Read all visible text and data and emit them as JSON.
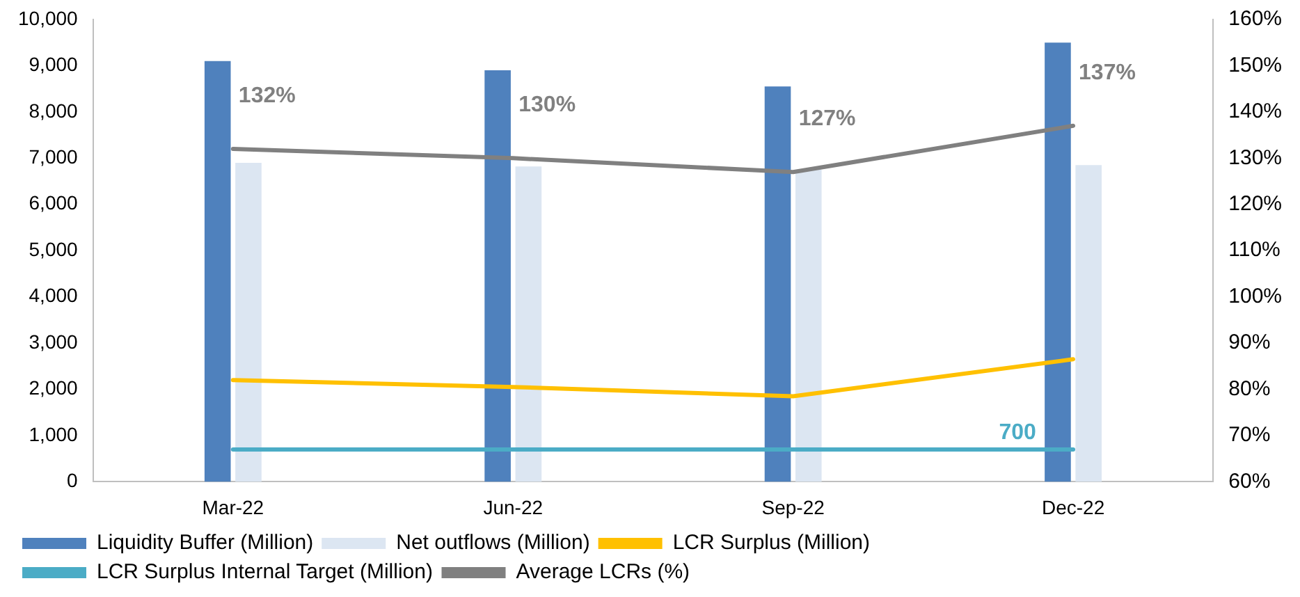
{
  "chart_data": {
    "type": "bar",
    "categories": [
      "Mar-22",
      "Jun-22",
      "Sep-22",
      "Dec-22"
    ],
    "series": [
      {
        "name": "Liquidity Buffer (Million)",
        "color": "#4f81bd",
        "values": [
          9100,
          8900,
          8550,
          9500
        ]
      },
      {
        "name": "Net outflows (Million)",
        "color": "#dce6f2",
        "values": [
          6900,
          6820,
          6750,
          6850
        ]
      },
      {
        "name": "LCR Surplus (Million)",
        "type": "line",
        "color": "#ffc000",
        "values": [
          2200,
          2050,
          1850,
          2650
        ]
      },
      {
        "name": "LCR Surplus Internal Target (Million)",
        "type": "line",
        "color": "#4bacc6",
        "values": [
          700,
          700,
          700,
          700
        ],
        "value_labels": [
          null,
          null,
          null,
          "700"
        ]
      },
      {
        "name": "Average LCRs (%)",
        "type": "line",
        "color": "#808080",
        "axis": "y2",
        "values": [
          132,
          130,
          127,
          137
        ],
        "value_labels": [
          "132%",
          "130%",
          "127%",
          "137%"
        ]
      }
    ],
    "ylim": [
      0,
      10000
    ],
    "yticks": [
      {
        "value": 0,
        "label": "0"
      },
      {
        "value": 1000,
        "label": "1,000"
      },
      {
        "value": 2000,
        "label": "2,000"
      },
      {
        "value": 3000,
        "label": "3,000"
      },
      {
        "value": 4000,
        "label": "4,000"
      },
      {
        "value": 5000,
        "label": "5,000"
      },
      {
        "value": 6000,
        "label": "6,000"
      },
      {
        "value": 7000,
        "label": "7,000"
      },
      {
        "value": 8000,
        "label": "8,000"
      },
      {
        "value": 9000,
        "label": "9,000"
      },
      {
        "value": 10000,
        "label": "10,000"
      }
    ],
    "y2lim": [
      60,
      160
    ],
    "y2ticks": [
      {
        "value": 60,
        "label": "60%"
      },
      {
        "value": 70,
        "label": "70%"
      },
      {
        "value": 80,
        "label": "80%"
      },
      {
        "value": 90,
        "label": "90%"
      },
      {
        "value": 100,
        "label": "100%"
      },
      {
        "value": 110,
        "label": "110%"
      },
      {
        "value": 120,
        "label": "120%"
      },
      {
        "value": 130,
        "label": "130%"
      },
      {
        "value": 140,
        "label": "140%"
      },
      {
        "value": 150,
        "label": "150%"
      },
      {
        "value": 160,
        "label": "160%"
      }
    ],
    "grid": false,
    "legend": "bottom",
    "marker": "none",
    "line_style": "solid"
  }
}
